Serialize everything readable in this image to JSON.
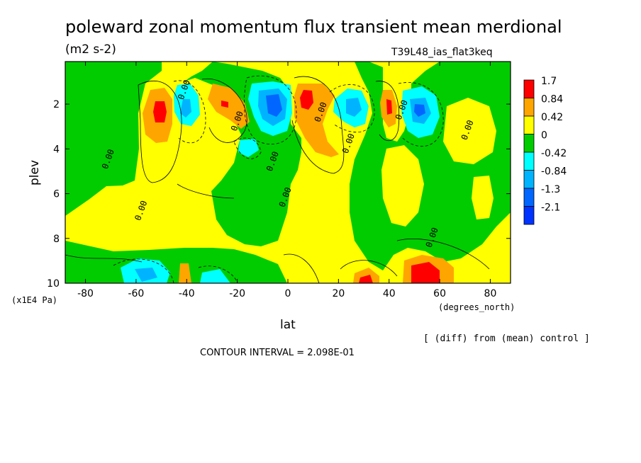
{
  "header": {
    "title": "poleward zonal momentum flux transient mean merdional",
    "units": "(m2 s-2)",
    "run": "T39L48_ias_flat3keq"
  },
  "footer": {
    "xunits": "(degrees_north)",
    "yunits": "(x1E4 Pa)",
    "diff_note": "[ (diff) from (mean) control ]",
    "contour_interval": "CONTOUR INTERVAL = 2.098E-01"
  },
  "chart_data": {
    "type": "heatmap",
    "title": "poleward zonal momentum flux transient mean merdional",
    "xlabel": "lat",
    "ylabel": "plev",
    "xlim": [
      -88,
      88
    ],
    "ylim": [
      10,
      0.1
    ],
    "x_ticks": [
      -80,
      -60,
      -40,
      -20,
      0,
      20,
      40,
      60,
      80
    ],
    "y_ticks": [
      2,
      4,
      6,
      8,
      10
    ],
    "legend_position": "right",
    "levels": [
      {
        "label": "1.7",
        "color": "#ff0000"
      },
      {
        "label": "0.84",
        "color": "#ffa500"
      },
      {
        "label": "0.42",
        "color": "#ffff00"
      },
      {
        "label": "0",
        "color": "#00cc00"
      },
      {
        "label": "-0.42",
        "color": "#00ffff"
      },
      {
        "label": "-0.84",
        "color": "#00b3ff"
      },
      {
        "label": "-1.3",
        "color": "#0066ff"
      },
      {
        "label": "-2.1",
        "color": "#0033ff"
      }
    ],
    "contour_labels": [
      {
        "lat": -70,
        "plev": 4.5,
        "text": "0.00"
      },
      {
        "lat": -57,
        "plev": 6.8,
        "text": "0.00"
      },
      {
        "lat": -40,
        "plev": 1.4,
        "text": "0.00"
      },
      {
        "lat": -19,
        "plev": 2.8,
        "text": "0.00"
      },
      {
        "lat": -5,
        "plev": 4.6,
        "text": "0.00"
      },
      {
        "lat": 0,
        "plev": 6.2,
        "text": "0.00"
      },
      {
        "lat": 14,
        "plev": 2.4,
        "text": "0.00"
      },
      {
        "lat": 25,
        "plev": 3.8,
        "text": "0.00"
      },
      {
        "lat": 46,
        "plev": 2.3,
        "text": "0.00"
      },
      {
        "lat": 72,
        "plev": 3.2,
        "text": "0.00"
      },
      {
        "lat": 58,
        "plev": 8.0,
        "text": "0.00"
      }
    ],
    "features": [
      {
        "lat": -51,
        "plev": 2.3,
        "value": 1.7
      },
      {
        "lat": -26,
        "plev": 2.1,
        "value": 0.84
      },
      {
        "lat": -40,
        "plev": 1.9,
        "value": -0.84
      },
      {
        "lat": -6,
        "plev": 2.0,
        "value": -2.1
      },
      {
        "lat": 8,
        "plev": 1.9,
        "value": 1.7
      },
      {
        "lat": 12,
        "plev": 3.0,
        "value": 0.84
      },
      {
        "lat": 28,
        "plev": 2.3,
        "value": -0.84
      },
      {
        "lat": 40,
        "plev": 2.2,
        "value": 0.84
      },
      {
        "lat": 53,
        "plev": 2.4,
        "value": -1.3
      },
      {
        "lat": -12,
        "plev": 4.0,
        "value": -0.42
      },
      {
        "lat": -63,
        "plev": 9.4,
        "value": -0.84
      },
      {
        "lat": -40,
        "plev": 9.5,
        "value": 0.84
      },
      {
        "lat": -30,
        "plev": 9.7,
        "value": -0.84
      },
      {
        "lat": 30,
        "plev": 9.7,
        "value": 1.7
      },
      {
        "lat": 52,
        "plev": 9.5,
        "value": 1.7
      }
    ]
  }
}
